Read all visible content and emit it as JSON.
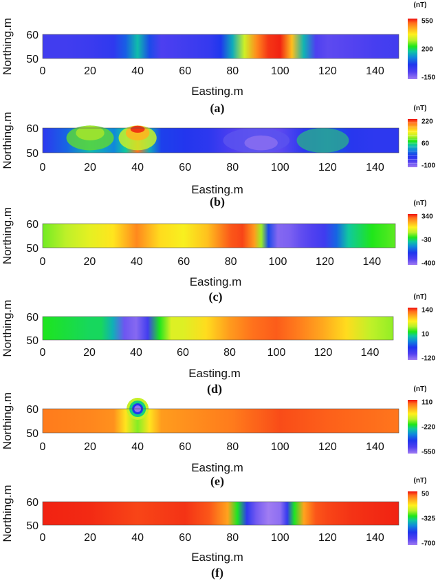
{
  "chart_data": [
    {
      "type": "heatmap",
      "panel_label": "(a)",
      "xlabel": "Easting.m",
      "ylabel": "Northing.m",
      "xlim": [
        0,
        150
      ],
      "ylim": [
        50,
        60
      ],
      "xticks": [
        0,
        20,
        40,
        60,
        80,
        100,
        120,
        140
      ],
      "yticks": [
        50,
        60
      ],
      "colorbar": {
        "unit": "(nT)",
        "ticks": [
          550,
          200,
          -150
        ],
        "range": [
          -150,
          550
        ],
        "scale": "rainbow"
      },
      "profile": {
        "easting": [
          0,
          10,
          20,
          30,
          35,
          40,
          45,
          50,
          60,
          70,
          75,
          80,
          85,
          90,
          95,
          100,
          105,
          110,
          115,
          120,
          130,
          140,
          150
        ],
        "values": [
          -40,
          -40,
          -30,
          -10,
          60,
          160,
          40,
          -60,
          -40,
          -20,
          20,
          140,
          320,
          470,
          530,
          540,
          420,
          150,
          -60,
          -80,
          -70,
          -50,
          -40
        ]
      }
    },
    {
      "type": "heatmap",
      "panel_label": "(b)",
      "xlabel": "Easting.m",
      "ylabel": "Northing.m",
      "xlim": [
        0,
        150
      ],
      "ylim": [
        50,
        60
      ],
      "xticks": [
        0,
        20,
        40,
        60,
        80,
        100,
        120,
        140
      ],
      "yticks": [
        50,
        60
      ],
      "colorbar": {
        "unit": "(nT)",
        "ticks": [
          220,
          60,
          -100
        ],
        "range": [
          -100,
          290
        ],
        "scale": "contour"
      },
      "profile": {
        "easting": [
          0,
          10,
          20,
          30,
          35,
          40,
          45,
          50,
          60,
          70,
          80,
          90,
          100,
          110,
          115,
          120,
          125,
          130,
          140,
          150
        ],
        "values": [
          -20,
          20,
          70,
          40,
          80,
          260,
          60,
          0,
          -10,
          -20,
          -50,
          -70,
          -60,
          -20,
          5,
          20,
          5,
          -15,
          -20,
          -20
        ]
      }
    },
    {
      "type": "heatmap",
      "panel_label": "(c)",
      "xlabel": "Easting.m",
      "ylabel": "Northing.m",
      "xlim": [
        0,
        150
      ],
      "ylim": [
        50,
        60
      ],
      "xticks": [
        0,
        20,
        40,
        60,
        80,
        100,
        120,
        140
      ],
      "yticks": [
        50,
        60
      ],
      "colorbar": {
        "unit": "(nT)",
        "ticks": [
          340,
          -30,
          -400
        ],
        "range": [
          -400,
          340
        ],
        "scale": "rainbow"
      },
      "profile": {
        "easting": [
          0,
          10,
          20,
          30,
          40,
          50,
          60,
          70,
          80,
          85,
          90,
          93,
          96,
          100,
          105,
          110,
          115,
          120,
          125,
          130,
          140,
          150
        ],
        "values": [
          40,
          80,
          120,
          160,
          260,
          170,
          140,
          200,
          300,
          310,
          240,
          60,
          -200,
          -370,
          -360,
          -330,
          -310,
          -280,
          -170,
          -60,
          0,
          30
        ]
      }
    },
    {
      "type": "heatmap",
      "panel_label": "(d)",
      "xlabel": "Easting.m",
      "ylabel": "Northing.m",
      "xlim": [
        0,
        150
      ],
      "ylim": [
        50,
        60
      ],
      "xticks": [
        0,
        20,
        40,
        60,
        80,
        100,
        120,
        140
      ],
      "yticks": [
        50,
        60
      ],
      "colorbar": {
        "unit": "(nT)",
        "ticks": [
          140,
          10,
          -120
        ],
        "range": [
          -120,
          140
        ],
        "scale": "rainbow"
      },
      "profile": {
        "easting": [
          0,
          10,
          20,
          25,
          30,
          35,
          40,
          45,
          50,
          55,
          60,
          70,
          80,
          90,
          100,
          110,
          120,
          130,
          140,
          150
        ],
        "values": [
          20,
          15,
          10,
          10,
          -10,
          -100,
          -110,
          -80,
          20,
          60,
          60,
          80,
          105,
          120,
          125,
          115,
          100,
          80,
          50,
          40
        ]
      }
    },
    {
      "type": "heatmap",
      "panel_label": "(e)",
      "xlabel": "Easting.m",
      "ylabel": "Northing.m",
      "xlim": [
        0,
        150
      ],
      "ylim": [
        50,
        60
      ],
      "xticks": [
        0,
        20,
        40,
        60,
        80,
        100,
        120,
        140
      ],
      "yticks": [
        50,
        60
      ],
      "colorbar": {
        "unit": "(nT)",
        "ticks": [
          110,
          -220,
          -550
        ],
        "range": [
          -550,
          110
        ],
        "scale": "rainbow"
      },
      "profile": {
        "easting": [
          0,
          20,
          30,
          35,
          40,
          45,
          50,
          60,
          80,
          100,
          120,
          150
        ],
        "values": [
          50,
          40,
          30,
          -50,
          -150,
          -50,
          20,
          30,
          50,
          80,
          70,
          55
        ]
      },
      "anomaly": {
        "easting": 40,
        "northing": 60,
        "value": -550
      }
    },
    {
      "type": "heatmap",
      "panel_label": "(f)",
      "xlabel": "Easting.m",
      "ylabel": "Northing.m",
      "xlim": [
        0,
        150
      ],
      "ylim": [
        50,
        60
      ],
      "xticks": [
        0,
        20,
        40,
        60,
        80,
        100,
        120,
        140
      ],
      "yticks": [
        50,
        60
      ],
      "colorbar": {
        "unit": "(nT)",
        "ticks": [
          50,
          -325,
          -700
        ],
        "range": [
          -700,
          50
        ],
        "scale": "rainbow"
      },
      "profile": {
        "easting": [
          0,
          20,
          40,
          60,
          70,
          78,
          82,
          86,
          90,
          95,
          100,
          103,
          106,
          110,
          115,
          120,
          130,
          150
        ],
        "values": [
          40,
          35,
          20,
          30,
          10,
          -60,
          -300,
          -550,
          -650,
          -700,
          -680,
          -560,
          -300,
          -60,
          10,
          20,
          30,
          40
        ]
      }
    }
  ]
}
